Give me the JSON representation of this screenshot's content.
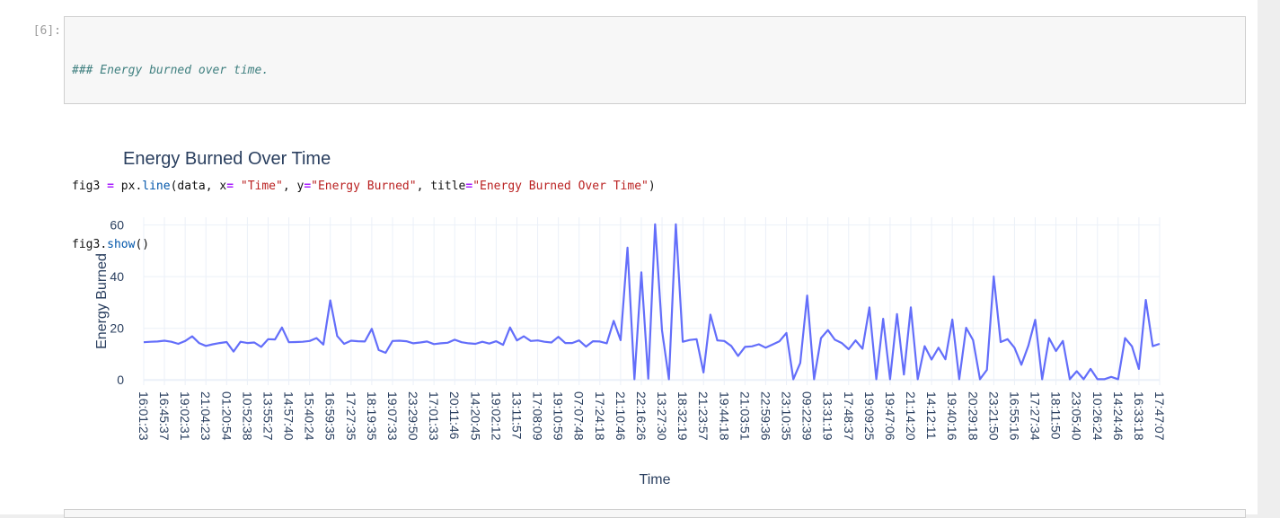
{
  "cell": {
    "prompt": "[6]:",
    "comment": "### Energy burned over time.",
    "line2_parts": [
      {
        "t": "fig3 ",
        "c": ""
      },
      {
        "t": "=",
        "c": "c-op"
      },
      {
        "t": " px",
        "c": ""
      },
      {
        "t": ".",
        "c": ""
      },
      {
        "t": "line",
        "c": "c-attr"
      },
      {
        "t": "(data, x",
        "c": ""
      },
      {
        "t": "=",
        "c": "c-op"
      },
      {
        "t": " ",
        "c": ""
      },
      {
        "t": "\"Time\"",
        "c": "c-str"
      },
      {
        "t": ", y",
        "c": ""
      },
      {
        "t": "=",
        "c": "c-op"
      },
      {
        "t": "\"Energy Burned\"",
        "c": "c-str"
      },
      {
        "t": ", title",
        "c": ""
      },
      {
        "t": "=",
        "c": "c-op"
      },
      {
        "t": "\"Energy Burned Over Time\"",
        "c": "c-str"
      },
      {
        "t": ")",
        "c": ""
      }
    ],
    "line3_parts": [
      {
        "t": "fig3",
        "c": ""
      },
      {
        "t": ".",
        "c": ""
      },
      {
        "t": "show",
        "c": "c-attr"
      },
      {
        "t": "()",
        "c": ""
      }
    ]
  },
  "colors": {
    "line": "#636efa",
    "grid": "#ebf0f8",
    "axis_text": "#2a3f5f",
    "title_text": "#2a3f5f"
  },
  "chart_data": {
    "type": "line",
    "title": "Energy Burned Over Time",
    "xlabel": "Time",
    "ylabel": "Energy Burned",
    "ylim": [
      -2,
      63
    ],
    "yticks": [
      0,
      20,
      40,
      60
    ],
    "grid": true,
    "x_ticks": [
      "16:01:23",
      "16:45:37",
      "19:02:31",
      "21:04:23",
      "01:20:54",
      "10:52:38",
      "13:55:27",
      "14:57:40",
      "15:40:24",
      "16:59:35",
      "17:27:35",
      "18:19:35",
      "19:07:33",
      "23:29:50",
      "17:01:33",
      "20:11:46",
      "14:20:45",
      "19:02:12",
      "13:11:57",
      "17:08:09",
      "19:10:59",
      "07:07:48",
      "17:24:18",
      "21:10:46",
      "22:16:26",
      "13:27:30",
      "18:32:19",
      "21:23:57",
      "19:44:18",
      "21:03:51",
      "22:59:36",
      "23:10:35",
      "09:22:39",
      "13:31:19",
      "17:48:37",
      "19:09:25",
      "19:47:06",
      "21:14:20",
      "14:12:11",
      "19:40:16",
      "20:29:18",
      "23:21:50",
      "16:55:16",
      "17:27:34",
      "18:11:50",
      "23:05:40",
      "10:26:24",
      "14:24:46",
      "16:33:18",
      "17:47:07"
    ],
    "values": [
      14.6,
      14.8,
      14.9,
      15.2,
      14.8,
      14.0,
      15.1,
      16.9,
      14.3,
      13.2,
      13.8,
      14.3,
      14.7,
      11.0,
      14.8,
      14.3,
      14.5,
      12.8,
      15.8,
      15.7,
      20.3,
      14.6,
      14.7,
      14.8,
      15.1,
      16.2,
      13.7,
      30.8,
      17.0,
      14.0,
      15.2,
      15.0,
      14.9,
      19.8,
      11.6,
      10.5,
      15.1,
      15.2,
      15.0,
      14.2,
      14.5,
      14.9,
      13.9,
      14.2,
      14.4,
      15.6,
      14.6,
      14.2,
      14.0,
      14.8,
      14.1,
      15.0,
      13.6,
      20.3,
      15.3,
      16.9,
      15.1,
      15.3,
      14.8,
      14.5,
      16.7,
      14.3,
      14.3,
      15.3,
      12.9,
      15.0,
      14.9,
      14.2,
      22.9,
      15.4,
      51.2,
      0.3,
      41.7,
      0.5,
      60.3,
      19.2,
      0.3,
      60.3,
      14.8,
      15.5,
      15.8,
      2.9,
      25.3,
      15.3,
      15.1,
      13.2,
      9.3,
      12.8,
      13.0,
      13.8,
      12.5,
      13.7,
      15.0,
      18.2,
      0.3,
      6.6,
      32.7,
      0.3,
      16.2,
      19.3,
      15.6,
      14.3,
      11.9,
      15.3,
      12.1,
      28.1,
      0.3,
      23.7,
      0.3,
      25.5,
      2.1,
      28.1,
      0.3,
      13.1,
      7.9,
      12.5,
      8.0,
      23.4,
      0.3,
      20.2,
      15.4,
      0.3,
      3.9,
      40.1,
      14.7,
      15.8,
      12.5,
      5.9,
      13.2,
      23.3,
      0.3,
      16.2,
      11.2,
      15.1,
      0.3,
      3.4,
      0.3,
      4.3,
      0.3,
      0.3,
      1.2,
      0.3,
      16.2,
      13.0,
      4.3,
      31.0,
      13.1,
      14.0
    ]
  }
}
